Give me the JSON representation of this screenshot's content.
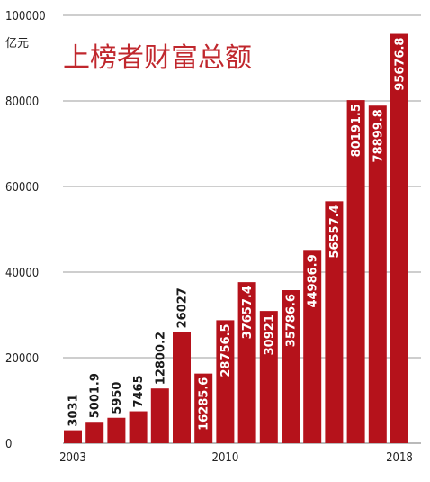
{
  "chart_data": {
    "type": "bar",
    "title": "上榜者财富总额",
    "ylabel": "亿元",
    "xlabel": "",
    "ylim": [
      0,
      100000
    ],
    "yticks": [
      0,
      20000,
      40000,
      60000,
      80000,
      100000
    ],
    "grid": true,
    "categories": [
      "2003",
      "2004",
      "2005",
      "2006",
      "2007",
      "2008",
      "2009",
      "2010",
      "2011",
      "2012",
      "2013",
      "2014",
      "2015",
      "2016",
      "2017",
      "2018"
    ],
    "x_tick_labels": [
      {
        "category": "2003",
        "label": "2003"
      },
      {
        "category": "2010",
        "label": "2010"
      },
      {
        "category": "2018",
        "label": "2018"
      }
    ],
    "values": [
      3031,
      5001.9,
      5950,
      7465,
      12800.2,
      26027,
      16285.6,
      28756.5,
      37657.4,
      30921,
      35786.6,
      44986.9,
      56557.4,
      80191.5,
      78899.8,
      95676.8
    ],
    "value_labels": [
      "3031",
      "5001.9",
      "5950",
      "7465",
      "12800.2",
      "26027",
      "16285.6",
      "28756.5",
      "37657.4",
      "30921",
      "35786.6",
      "44986.9",
      "56557.4",
      "80191.5",
      "78899.8",
      "95676.8"
    ],
    "colors": {
      "bar": "#b5121b",
      "title": "#c0272d",
      "grid": "#b0b0b0"
    }
  }
}
